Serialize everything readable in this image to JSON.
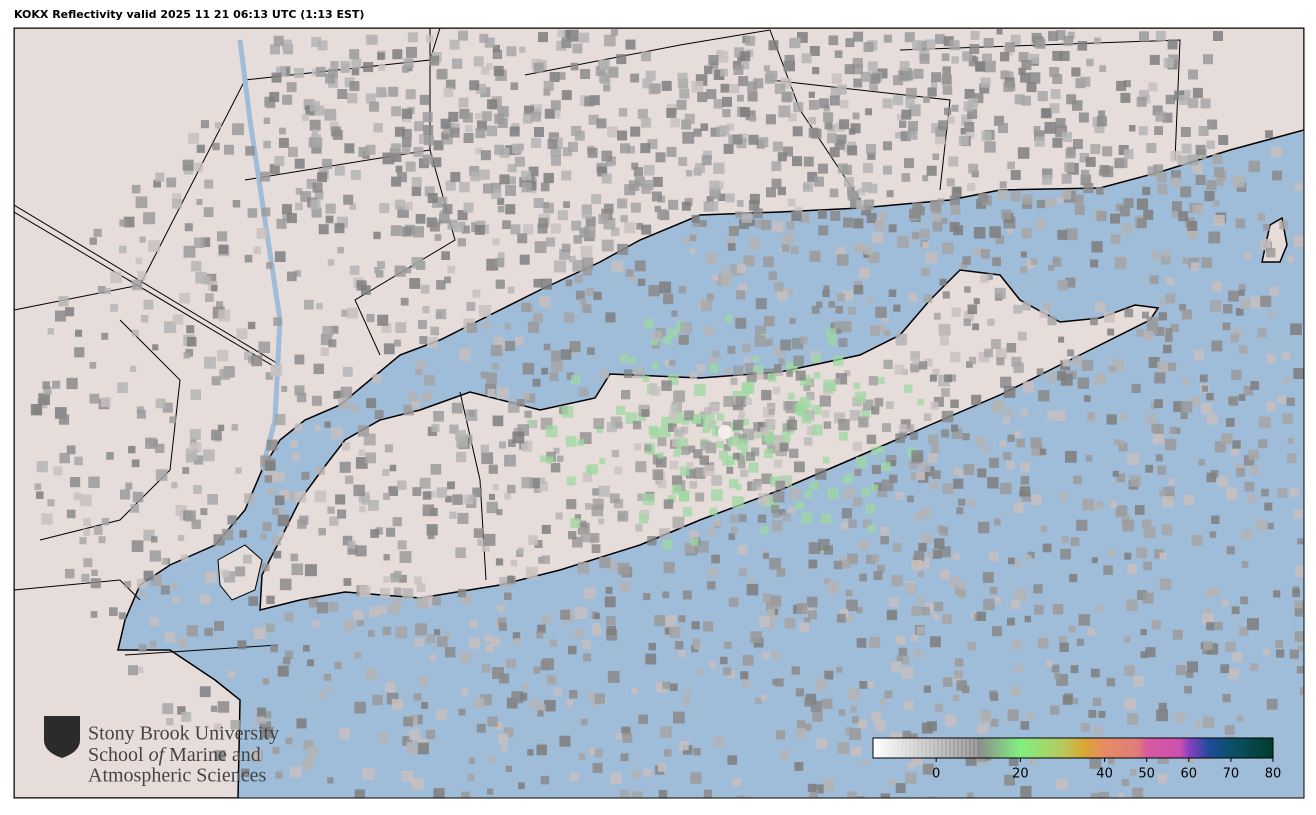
{
  "title": "KOKX Reflectivity valid 2025 11 21 06:13 UTC (1:13 EST)",
  "logo": {
    "line1": "Stony Brook University",
    "line2_a": "School ",
    "line2_b": "of",
    "line2_c": " Marine and",
    "line3": "Atmospheric Sciences"
  },
  "colorbar": {
    "lim": [
      -15,
      80
    ],
    "ticks": [
      0,
      20,
      40,
      50,
      60,
      70,
      80
    ],
    "stops": [
      {
        "value": -15,
        "color": "#ffffff"
      },
      {
        "value": 10,
        "color": "#8c8c8c"
      },
      {
        "value": 20,
        "color": "#80f080"
      },
      {
        "value": 30,
        "color": "#b8c860"
      },
      {
        "value": 35,
        "color": "#d8a830"
      },
      {
        "value": 40,
        "color": "#e88a68"
      },
      {
        "value": 48,
        "color": "#e07c78"
      },
      {
        "value": 50,
        "color": "#d85aa0"
      },
      {
        "value": 58,
        "color": "#cc50b0"
      },
      {
        "value": 60,
        "color": "#8a40c0"
      },
      {
        "value": 65,
        "color": "#1c4c9c"
      },
      {
        "value": 70,
        "color": "#0c5068"
      },
      {
        "value": 80,
        "color": "#003c2c"
      }
    ]
  }
}
